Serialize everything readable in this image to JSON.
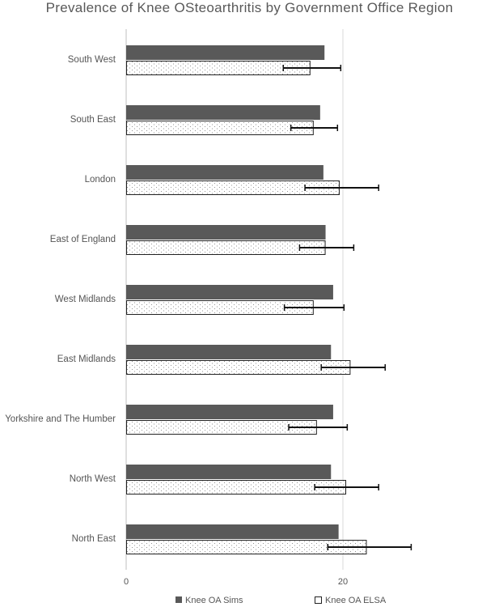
{
  "chart_data": {
    "type": "bar",
    "orientation": "horizontal",
    "title": "Prevalence of Knee OSteoarthritis by Government Office Region",
    "categories": [
      "South West",
      "South East",
      "London",
      "East of England",
      "West Midlands",
      "East Midlands",
      "Yorkshire and The Humber",
      "North West",
      "North East"
    ],
    "series": [
      {
        "name": "Knee OA Sims",
        "values": [
          18.3,
          17.9,
          18.2,
          18.4,
          19.1,
          18.9,
          19.1,
          18.9,
          19.6
        ],
        "color": "#595959"
      },
      {
        "name": "Knee OA ELSA",
        "values": [
          17.0,
          17.3,
          19.7,
          18.4,
          17.3,
          20.7,
          17.6,
          20.3,
          22.2
        ],
        "error": [
          [
            14.5,
            19.8
          ],
          [
            15.2,
            19.5
          ],
          [
            16.5,
            23.3
          ],
          [
            16.0,
            21.0
          ],
          [
            14.6,
            20.1
          ],
          [
            18.0,
            23.9
          ],
          [
            15.0,
            20.4
          ],
          [
            17.4,
            23.3
          ],
          [
            18.6,
            26.3
          ]
        ],
        "color": "#ffffff",
        "pattern": "dotted",
        "border": "#222222"
      }
    ],
    "x_ticks": [
      0,
      20
    ],
    "xlim": [
      0,
      34
    ],
    "grid": true,
    "legend_position": "bottom"
  }
}
